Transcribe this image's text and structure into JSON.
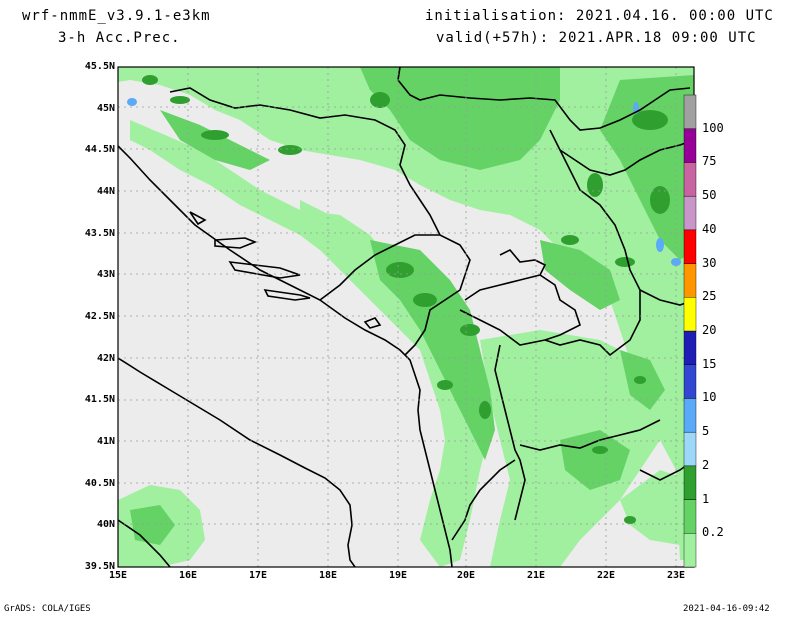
{
  "header": {
    "model": "wrf-nmmE_v3.9.1-e3km",
    "field": "3-h Acc.Prec.",
    "init": "initialisation: 2021.04.16. 00:00 UTC",
    "valid": "valid(+57h): 2021.APR.18 09:00 UTC"
  },
  "footer": {
    "left": "GrADS: COLA/IGES",
    "right": "2021-04-16-09:42"
  },
  "axes": {
    "lat_labels": [
      "45.5N",
      "45N",
      "44.5N",
      "44N",
      "43.5N",
      "43N",
      "42.5N",
      "42N",
      "41.5N",
      "41N",
      "40.5N",
      "40N",
      "39.5N"
    ],
    "lon_labels": [
      "15E",
      "16E",
      "17E",
      "18E",
      "19E",
      "20E",
      "21E",
      "22E",
      "23E"
    ]
  },
  "colorbar": {
    "levels": [
      "0.2",
      "1",
      "2",
      "5",
      "10",
      "15",
      "20",
      "25",
      "30",
      "40",
      "50",
      "75",
      "100"
    ],
    "colors": [
      "#a0f0a0",
      "#64d264",
      "#2fa02f",
      "#9ed8f8",
      "#5aaaf8",
      "#3246d2",
      "#1e1eb4",
      "#ffff00",
      "#ff9600",
      "#ff0000",
      "#c896c8",
      "#c864a0",
      "#960096",
      "#a0a0a0"
    ]
  },
  "map_colors": {
    "background": "#ececec",
    "light_green": "#a0f0a0",
    "mid_green": "#64d264",
    "dark_green": "#2fa02f",
    "water": "#5aaaf8"
  }
}
